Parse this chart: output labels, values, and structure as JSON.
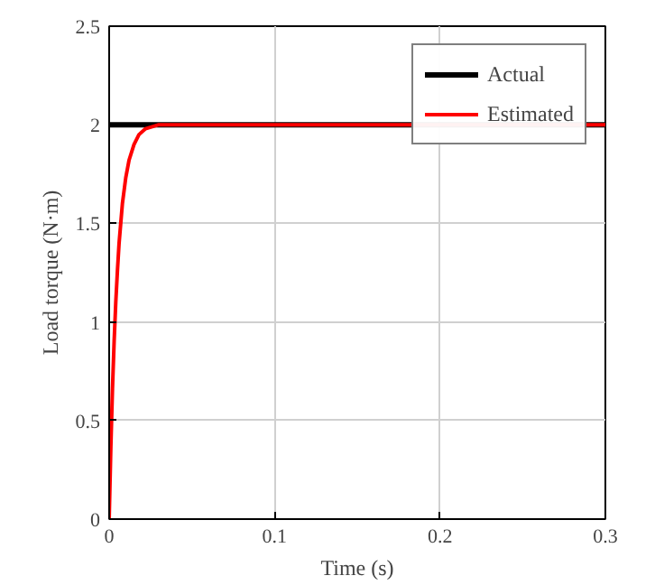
{
  "chart_data": {
    "type": "line",
    "xlabel": "Time (s)",
    "ylabel": "Load torque (N·m)",
    "series": [
      {
        "name": "Actual",
        "color": "#000000",
        "x": [
          0,
          0.3
        ],
        "values": [
          2,
          2
        ]
      },
      {
        "name": "Estimated",
        "color": "#ff0000",
        "x": [
          0,
          0.001,
          0.002,
          0.003,
          0.004,
          0.005,
          0.006,
          0.008,
          0.01,
          0.012,
          0.015,
          0.018,
          0.022,
          0.026,
          0.03,
          0.04,
          0.3
        ],
        "values": [
          0,
          0.36,
          0.66,
          0.9,
          1.1,
          1.26,
          1.4,
          1.6,
          1.73,
          1.82,
          1.9,
          1.95,
          1.98,
          1.99,
          2,
          2,
          2
        ]
      }
    ],
    "xlim": [
      0,
      0.3
    ],
    "ylim": [
      0,
      2.5
    ],
    "xticks": [
      0,
      0.1,
      0.2,
      0.3
    ],
    "yticks": [
      0,
      0.5,
      1,
      1.5,
      2,
      2.5
    ],
    "grid": true,
    "legend": "top right",
    "line_style": "solid",
    "marker": "none"
  }
}
